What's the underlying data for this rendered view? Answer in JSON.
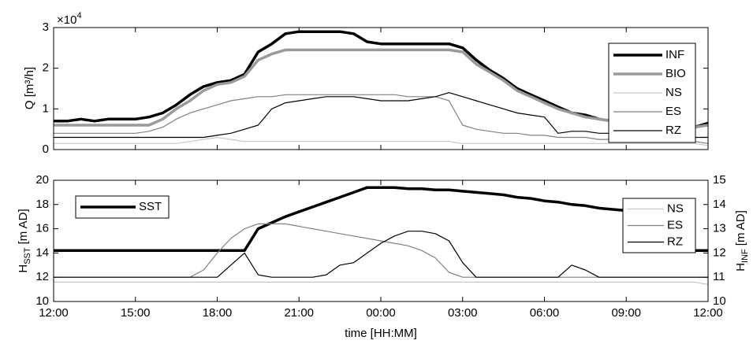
{
  "chart_data": [
    {
      "type": "line",
      "ylabel": "Q [m³/h]",
      "y_multiplier": "×10",
      "y_multiplier_exponent": "4",
      "x": [
        0,
        0.5,
        1,
        1.5,
        2,
        2.5,
        3,
        3.5,
        4,
        4.5,
        5,
        5.5,
        6,
        6.5,
        7,
        7.5,
        8,
        8.5,
        9,
        9.5,
        10,
        10.5,
        11,
        11.5,
        12,
        12.5,
        13,
        13.5,
        14,
        14.5,
        15,
        15.5,
        16,
        16.5,
        17,
        17.5,
        18,
        18.5,
        19,
        19.5,
        20,
        20.5,
        21,
        21.5,
        22,
        22.5,
        23,
        23.5,
        24
      ],
      "xlim": [
        0,
        24
      ],
      "xticks": [
        0,
        3,
        6,
        9,
        12,
        15,
        18,
        21,
        24
      ],
      "ylim": [
        0,
        3
      ],
      "yticks": [
        0,
        1,
        2,
        3
      ],
      "legend": "upper right",
      "series": [
        {
          "name": "INF",
          "color": "#000000",
          "linewidth": 3.5,
          "values": [
            0.7,
            0.7,
            0.75,
            0.7,
            0.75,
            0.75,
            0.75,
            0.8,
            0.9,
            1.1,
            1.35,
            1.55,
            1.65,
            1.7,
            1.85,
            2.4,
            2.6,
            2.85,
            2.9,
            2.9,
            2.9,
            2.9,
            2.85,
            2.65,
            2.6,
            2.6,
            2.6,
            2.6,
            2.6,
            2.6,
            2.5,
            2.2,
            1.95,
            1.75,
            1.5,
            1.35,
            1.2,
            1.05,
            0.9,
            0.85,
            0.75,
            0.7,
            0.65,
            0.6,
            0.55,
            0.55,
            0.5,
            0.55,
            0.65
          ]
        },
        {
          "name": "BIO",
          "color": "#9a9a9a",
          "linewidth": 3.5,
          "values": [
            0.6,
            0.6,
            0.6,
            0.6,
            0.6,
            0.6,
            0.6,
            0.6,
            0.75,
            1.0,
            1.2,
            1.45,
            1.6,
            1.65,
            1.8,
            2.2,
            2.35,
            2.45,
            2.45,
            2.45,
            2.45,
            2.45,
            2.45,
            2.45,
            2.45,
            2.45,
            2.45,
            2.45,
            2.45,
            2.45,
            2.4,
            2.1,
            1.9,
            1.7,
            1.45,
            1.3,
            1.15,
            1.0,
            0.9,
            0.8,
            0.75,
            0.7,
            0.65,
            0.6,
            0.55,
            0.55,
            0.55,
            0.55,
            0.6
          ]
        },
        {
          "name": "NS",
          "color": "#c8c8c8",
          "linewidth": 1.2,
          "values": [
            0.15,
            0.15,
            0.15,
            0.15,
            0.15,
            0.15,
            0.15,
            0.15,
            0.15,
            0.15,
            0.2,
            0.25,
            0.3,
            0.25,
            0.2,
            0.2,
            0.2,
            0.2,
            0.2,
            0.2,
            0.2,
            0.2,
            0.2,
            0.2,
            0.2,
            0.2,
            0.2,
            0.2,
            0.2,
            0.2,
            0.15,
            0.15,
            0.15,
            0.15,
            0.15,
            0.15,
            0.15,
            0.15,
            0.15,
            0.15,
            0.15,
            0.15,
            0.15,
            0.15,
            0.15,
            0.15,
            0.15,
            0.15,
            0.1
          ]
        },
        {
          "name": "ES",
          "color": "#808080",
          "linewidth": 1.2,
          "values": [
            0.4,
            0.4,
            0.4,
            0.4,
            0.4,
            0.4,
            0.4,
            0.45,
            0.55,
            0.75,
            0.9,
            1.0,
            1.1,
            1.2,
            1.25,
            1.3,
            1.3,
            1.35,
            1.35,
            1.35,
            1.35,
            1.35,
            1.35,
            1.35,
            1.35,
            1.35,
            1.3,
            1.3,
            1.3,
            1.2,
            0.6,
            0.5,
            0.45,
            0.4,
            0.4,
            0.35,
            0.35,
            0.3,
            0.3,
            0.3,
            0.25,
            0.25,
            0.25,
            0.2,
            0.2,
            0.2,
            0.2,
            0.2,
            0.15
          ]
        },
        {
          "name": "RZ",
          "color": "#000000",
          "linewidth": 1.2,
          "values": [
            0.3,
            0.3,
            0.3,
            0.3,
            0.3,
            0.3,
            0.3,
            0.3,
            0.3,
            0.3,
            0.3,
            0.3,
            0.35,
            0.4,
            0.5,
            0.6,
            1.0,
            1.15,
            1.2,
            1.25,
            1.3,
            1.3,
            1.3,
            1.25,
            1.2,
            1.2,
            1.2,
            1.25,
            1.3,
            1.4,
            1.3,
            1.2,
            1.1,
            1.0,
            0.9,
            0.85,
            0.8,
            0.4,
            0.45,
            0.45,
            0.4,
            0.4,
            0.35,
            0.35,
            0.35,
            0.3,
            0.3,
            0.3,
            0.3
          ]
        }
      ]
    },
    {
      "type": "line",
      "xlabel": "time [HH:MM]",
      "ylabel": "H",
      "ylabel_sub": "SST",
      "ylabel_unit": "[m AD]",
      "y2label": "H",
      "y2label_sub": "INF",
      "y2label_unit": "[m AD]",
      "x": [
        0,
        0.5,
        1,
        1.5,
        2,
        2.5,
        3,
        3.5,
        4,
        4.5,
        5,
        5.5,
        6,
        6.5,
        7,
        7.5,
        8,
        8.5,
        9,
        9.5,
        10,
        10.5,
        11,
        11.5,
        12,
        12.5,
        13,
        13.5,
        14,
        14.5,
        15,
        15.5,
        16,
        16.5,
        17,
        17.5,
        18,
        18.5,
        19,
        19.5,
        20,
        20.5,
        21,
        21.5,
        22,
        22.5,
        23,
        23.5,
        24
      ],
      "xlim": [
        0,
        24
      ],
      "xticks": [
        {
          "value": 0,
          "label": "12:00"
        },
        {
          "value": 3,
          "label": "15:00"
        },
        {
          "value": 6,
          "label": "18:00"
        },
        {
          "value": 9,
          "label": "21:00"
        },
        {
          "value": 12,
          "label": "00:00"
        },
        {
          "value": 15,
          "label": "03:00"
        },
        {
          "value": 18,
          "label": "06:00"
        },
        {
          "value": 21,
          "label": "09:00"
        },
        {
          "value": 24,
          "label": "12:00"
        }
      ],
      "ylim": [
        10,
        20
      ],
      "yticks": [
        10,
        12,
        14,
        16,
        18,
        20
      ],
      "y2lim": [
        10,
        15
      ],
      "y2ticks": [
        10,
        11,
        12,
        13,
        14,
        15
      ],
      "legend": {
        "y": "upper left",
        "y2": "upper right"
      },
      "series": [
        {
          "name": "SST",
          "color": "#000000",
          "linewidth": 3.5,
          "values": [
            14.2,
            14.2,
            14.2,
            14.2,
            14.2,
            14.2,
            14.2,
            14.2,
            14.2,
            14.2,
            14.2,
            14.2,
            14.2,
            14.2,
            14.2,
            16.0,
            16.5,
            17.0,
            17.4,
            17.8,
            18.2,
            18.6,
            19.0,
            19.4,
            19.4,
            19.4,
            19.3,
            19.3,
            19.2,
            19.2,
            19.1,
            19.0,
            18.9,
            18.8,
            18.6,
            18.5,
            18.3,
            18.2,
            18.0,
            17.9,
            17.7,
            17.6,
            17.5,
            17.3,
            17.0,
            16.5,
            15.8,
            14.2,
            14.2
          ]
        },
        {
          "name": "NS",
          "color": "#c8c8c8",
          "linewidth": 1.2,
          "axis": "y2",
          "values": [
            10.8,
            10.8,
            10.8,
            10.8,
            10.8,
            10.8,
            10.8,
            10.8,
            10.8,
            10.8,
            10.8,
            10.8,
            10.8,
            10.8,
            10.8,
            10.8,
            10.8,
            10.8,
            10.8,
            10.8,
            10.8,
            10.8,
            10.8,
            10.8,
            10.8,
            10.8,
            10.8,
            10.8,
            10.8,
            10.8,
            10.8,
            10.8,
            10.8,
            10.8,
            10.8,
            10.8,
            10.8,
            10.8,
            10.8,
            10.8,
            10.8,
            10.8,
            10.8,
            10.8,
            10.8,
            10.8,
            10.8,
            10.8,
            10.7
          ]
        },
        {
          "name": "ES",
          "color": "#808080",
          "linewidth": 1.2,
          "axis": "y2",
          "values": [
            11,
            11,
            11,
            11,
            11,
            11,
            11,
            11,
            11,
            11,
            11,
            11.3,
            12.0,
            12.6,
            13.0,
            13.2,
            13.2,
            13.2,
            13.1,
            13.0,
            12.9,
            12.8,
            12.7,
            12.6,
            12.5,
            12.4,
            12.3,
            12.1,
            11.8,
            11.2,
            11,
            11,
            11,
            11,
            11,
            11,
            11,
            11,
            11,
            11,
            11,
            11,
            11,
            11,
            11,
            11,
            11,
            11,
            11
          ]
        },
        {
          "name": "RZ",
          "color": "#000000",
          "linewidth": 1.2,
          "axis": "y2",
          "values": [
            11,
            11,
            11,
            11,
            11,
            11,
            11,
            11,
            11,
            11,
            11,
            11,
            11,
            11.5,
            12.0,
            11.1,
            11,
            11,
            11,
            11,
            11.1,
            11.5,
            11.6,
            12.0,
            12.4,
            12.7,
            12.9,
            12.9,
            12.8,
            12.5,
            11.6,
            11.0,
            11,
            11,
            11,
            11,
            11,
            11,
            11.5,
            11.3,
            11,
            11,
            11,
            11,
            11,
            11,
            11,
            11,
            11
          ]
        }
      ]
    }
  ]
}
